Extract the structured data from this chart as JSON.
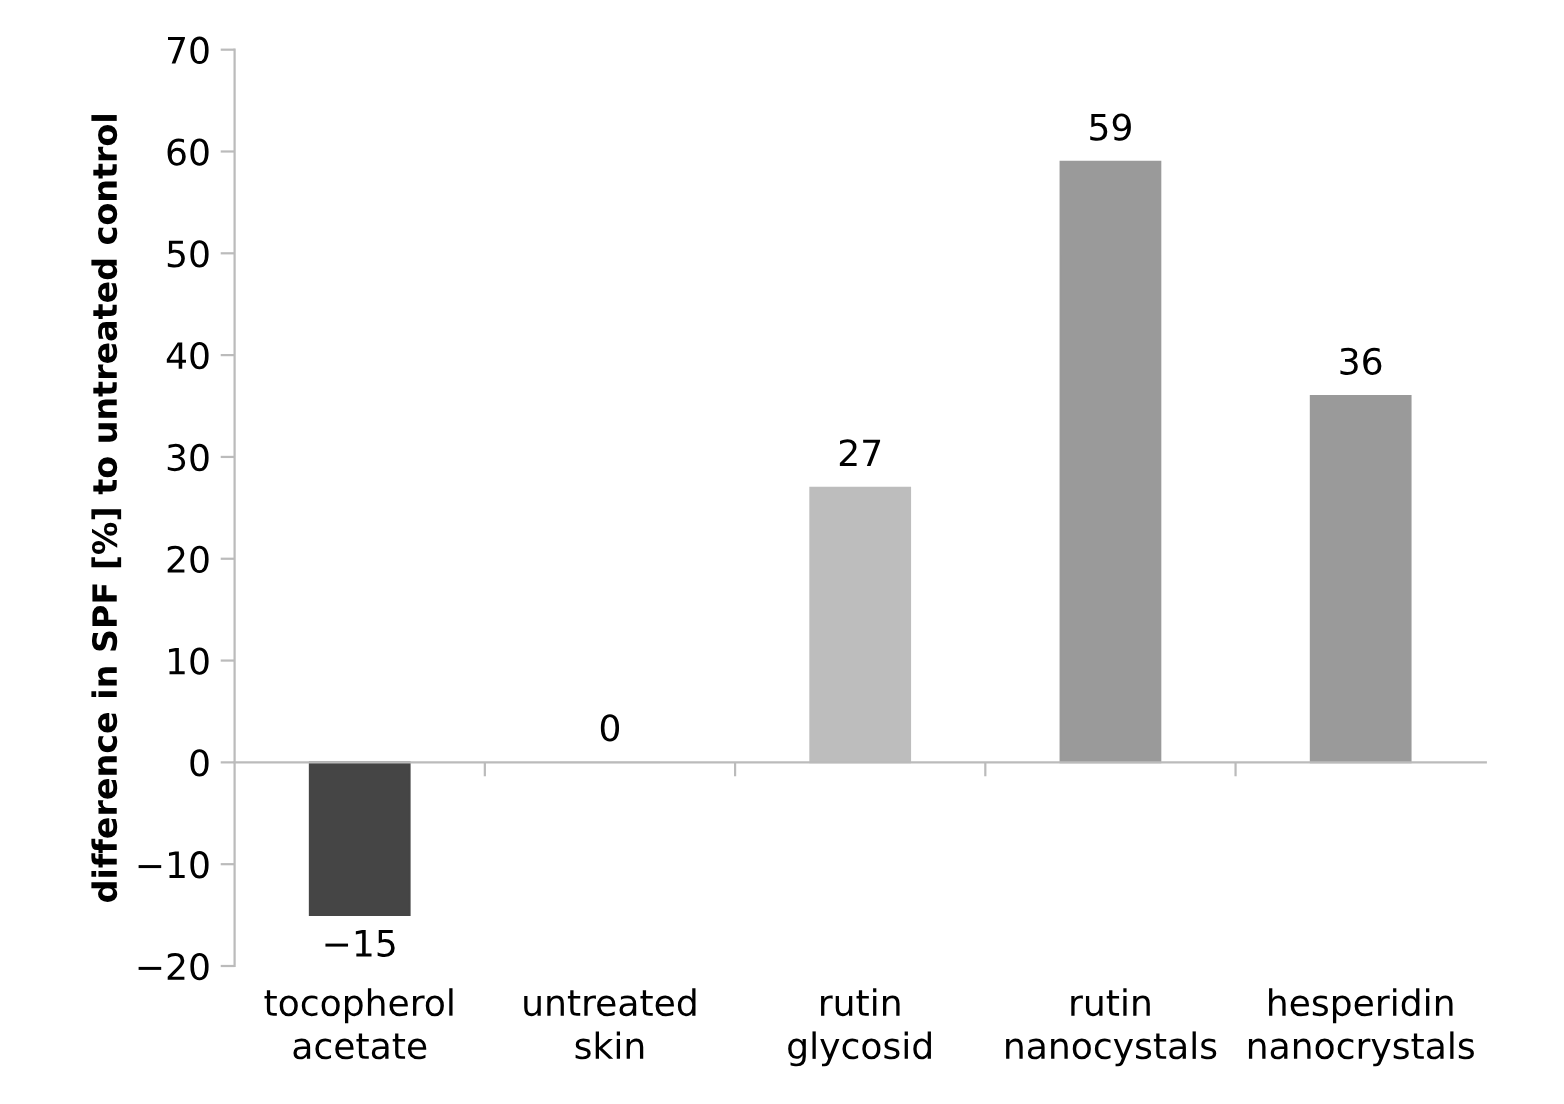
{
  "chart_data": {
    "type": "bar",
    "ylabel": "difference in SPF [%] to untreated control",
    "categories": [
      "tocopherol acetate",
      "untreated skin",
      "rutin glycosid",
      "rutin nanocystals",
      "hesperidin nanocrystals"
    ],
    "values": [
      -15,
      0,
      27,
      59,
      36
    ],
    "colors": [
      "#454545",
      "#e0e0e0",
      "#bdbdbd",
      "#9a9a9a",
      "#9a9a9a"
    ],
    "ylim": [
      -20,
      70
    ],
    "yticks": [
      {
        "value": -20,
        "label": "−20"
      },
      {
        "value": -10,
        "label": "−10"
      },
      0,
      10,
      20,
      30,
      40,
      50,
      60,
      70
    ],
    "data_labels": true
  }
}
